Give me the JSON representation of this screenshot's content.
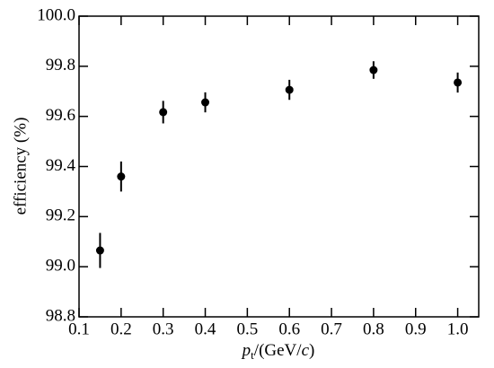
{
  "chart_data": {
    "type": "scatter",
    "y_label": "efficiency (%)",
    "x_label": [
      "p",
      "t",
      "/(GeV/",
      "c",
      ")"
    ],
    "series": [
      {
        "color": "#000000",
        "x": [
          0.15,
          0.2,
          0.3,
          0.4,
          0.6,
          0.8,
          1.0
        ],
        "values": [
          99.065,
          99.36,
          99.617,
          99.656,
          99.706,
          99.785,
          99.735
        ],
        "errors": [
          0.07,
          0.06,
          0.045,
          0.04,
          0.04,
          0.035,
          0.04
        ]
      }
    ],
    "xlim": [
      0.1,
      1.05
    ],
    "ylim": [
      98.8,
      100.0
    ],
    "xticks": [
      0.1,
      0.2,
      0.3,
      0.4,
      0.5,
      0.6,
      0.7,
      0.8,
      0.9,
      {
        "value": 1.0,
        "label": "1.0"
      }
    ],
    "yticks": [
      {
        "value": 98.8,
        "label": "98.8"
      },
      {
        "value": 99.0,
        "label": "99.0"
      },
      99.2,
      99.4,
      99.6,
      99.8,
      {
        "value": 100.0,
        "label": "100.0"
      }
    ]
  }
}
